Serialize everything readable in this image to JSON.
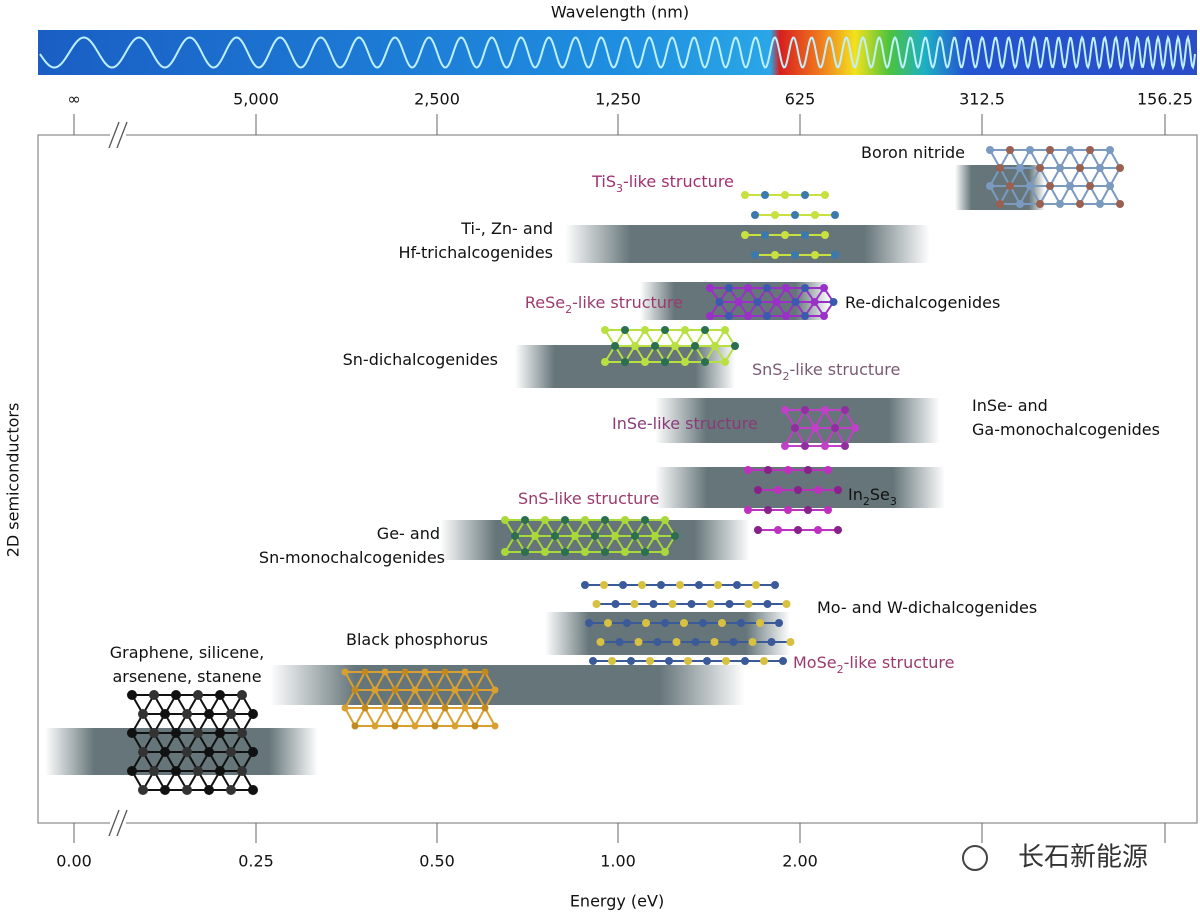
{
  "header": {
    "title": "Wavelength (nm)"
  },
  "wavelength_ticks": [
    "∞",
    "5,000",
    "2,500",
    "1,250",
    "625",
    "312.5",
    "156.25"
  ],
  "energy_ticks": [
    "0.00",
    "0.25",
    "0.50",
    "1.00",
    "2.00"
  ],
  "x_label": "Energy (eV)",
  "y_label": "2D semiconductors",
  "materials": [
    {
      "lines": [
        [
          "Boron nitride"
        ]
      ]
    },
    {
      "lines": [
        [
          "Ti-, Zn- and"
        ],
        [
          "Hf-trichalcogenides"
        ]
      ]
    },
    {
      "lines": [
        [
          "Re-dichalcogenides"
        ]
      ]
    },
    {
      "lines": [
        [
          "Sn-dichalcogenides"
        ]
      ]
    },
    {
      "lines": [
        [
          "InSe- and"
        ],
        [
          "Ga-monochalcogenides"
        ]
      ]
    },
    {
      "lines": [
        [
          "In",
          "2",
          "Se",
          "3"
        ]
      ]
    },
    {
      "lines": [
        [
          "Ge- and"
        ],
        [
          "Sn-monochalcogenides"
        ]
      ]
    },
    {
      "lines": [
        [
          "Mo- and W-dichalcogenides"
        ]
      ]
    },
    {
      "lines": [
        [
          "Black phosphorus"
        ]
      ]
    },
    {
      "lines": [
        [
          "Graphene, silicene,"
        ],
        [
          "arsenene, stanene"
        ]
      ]
    }
  ],
  "structures": [
    [
      "TiS",
      "3",
      "-like structure"
    ],
    [
      "ReSe",
      "2",
      "-like structure"
    ],
    [
      "SnS",
      "2",
      "-like structure"
    ],
    [
      "InSe-like structure"
    ],
    [
      "SnS-like structure"
    ],
    [
      "MoSe",
      "2",
      "-like structure"
    ]
  ],
  "watermark": "长石新能源"
}
